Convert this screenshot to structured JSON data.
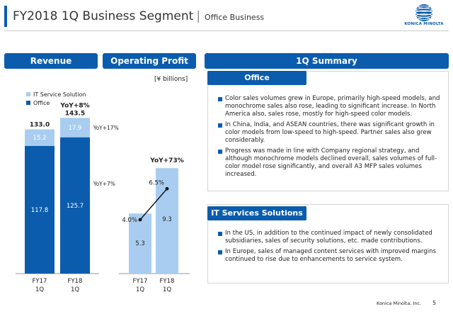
{
  "header": {
    "title": "FY2018 1Q Business Segment",
    "separator": "|",
    "subtitle": "Office Business"
  },
  "logo": {
    "text": "KONICA MINOLTA"
  },
  "panels": {
    "revenue": "Revenue",
    "operating_profit": "Operating Profit",
    "summary": "1Q Summary"
  },
  "unit_label": "[¥ billions]",
  "legend": {
    "items": [
      {
        "label": "IT Service Solution",
        "color": "#a9cdf0"
      },
      {
        "label": "Office",
        "color": "#0b5cad"
      }
    ]
  },
  "chart_data": [
    {
      "type": "bar",
      "title": "Revenue",
      "categories": [
        "FY17\n1Q",
        "FY18\n1Q"
      ],
      "series": [
        {
          "name": "Office",
          "values": [
            117.8,
            125.7
          ],
          "color": "#0b5cad"
        },
        {
          "name": "IT Service Solution",
          "values": [
            15.2,
            17.9
          ],
          "color": "#a9cdf0"
        }
      ],
      "totals": [
        133.0,
        143.5
      ],
      "total_labels": [
        "133.0",
        "143.5"
      ],
      "data_labels": [
        [
          "117.8",
          "125.7"
        ],
        [
          "15.2",
          "17.9"
        ]
      ],
      "annotations": {
        "total_yoy": "YoY+8%",
        "it_yoy": "YoY+17%",
        "office_yoy": "YoY+7%"
      },
      "ylim": [
        0,
        150
      ]
    },
    {
      "type": "bar",
      "title": "Operating Profit",
      "categories": [
        "FY17\n1Q",
        "FY18\n1Q"
      ],
      "values": [
        5.3,
        9.3
      ],
      "value_labels": [
        "5.3",
        "9.3"
      ],
      "color": "#a9cdf0",
      "margin_line": {
        "values": [
          4.0,
          6.5
        ],
        "labels": [
          "4.0%",
          "6.5%"
        ],
        "ylim": [
          0,
          10
        ]
      },
      "annotations": {
        "yoy": "YoY+73%"
      },
      "ylim": [
        0,
        11.7
      ]
    }
  ],
  "summary": {
    "office": {
      "title": "Office",
      "bullets": [
        "Color sales volumes grew in Europe, primarily high-speed models, and monochrome sales also rose, leading to significant increase. In North America also, sales rose, mostly for high-speed color models.",
        "In China, India, and ASEAN countries, there was significant growth in color models from low-speed to high-speed. Partner sales also grew considerably.",
        "Progress was made in line with Company regional strategy, and although monochrome models declined overall, sales volumes of full-color model rose significantly, and overall A3 MFP sales volumes increased."
      ]
    },
    "it_services": {
      "title": "IT Services Solutions",
      "bullets": [
        "In the US, in addition to the continued impact of newly consolidated subsidiaries, sales of security solutions, etc. made contributions.",
        "In Europe, sales of managed content services with improved margins continued to rise due to enhancements to service system."
      ]
    }
  },
  "footer": {
    "company": "Konica Minolta, Inc.",
    "page": "5"
  }
}
